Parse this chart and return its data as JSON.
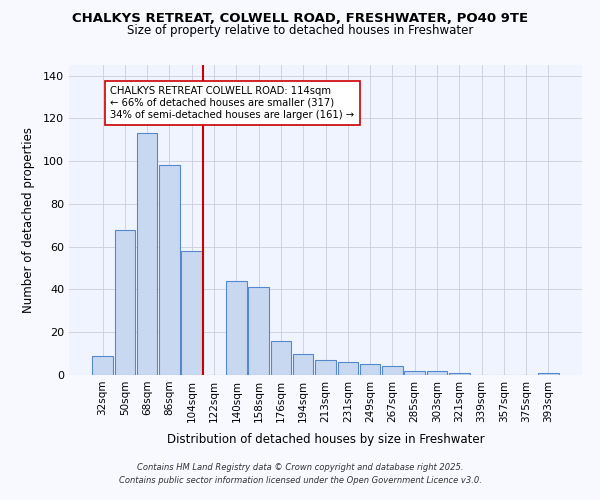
{
  "title_line1": "CHALKYS RETREAT, COLWELL ROAD, FRESHWATER, PO40 9TE",
  "title_line2": "Size of property relative to detached houses in Freshwater",
  "xlabel": "Distribution of detached houses by size in Freshwater",
  "ylabel": "Number of detached properties",
  "categories": [
    "32sqm",
    "50sqm",
    "68sqm",
    "86sqm",
    "104sqm",
    "122sqm",
    "140sqm",
    "158sqm",
    "176sqm",
    "194sqm",
    "213sqm",
    "231sqm",
    "249sqm",
    "267sqm",
    "285sqm",
    "303sqm",
    "321sqm",
    "339sqm",
    "357sqm",
    "375sqm",
    "393sqm"
  ],
  "values": [
    9,
    68,
    113,
    98,
    58,
    0,
    44,
    41,
    16,
    10,
    7,
    6,
    5,
    4,
    2,
    2,
    1,
    0,
    0,
    0,
    1
  ],
  "bar_color": "#c8d8f0",
  "bar_edge_color": "#5588cc",
  "vline_index": 5,
  "vline_color": "#cc0000",
  "annotation_text": "CHALKYS RETREAT COLWELL ROAD: 114sqm\n← 66% of detached houses are smaller (317)\n34% of semi-detached houses are larger (161) →",
  "annotation_box_edge": "#cc0000",
  "ylim": [
    0,
    145
  ],
  "yticks": [
    0,
    20,
    40,
    60,
    80,
    100,
    120,
    140
  ],
  "footer_line1": "Contains HM Land Registry data © Crown copyright and database right 2025.",
  "footer_line2": "Contains public sector information licensed under the Open Government Licence v3.0.",
  "fig_bg": "#f8f8ff",
  "plot_bg": "#f0f4ff",
  "grid_color": "#ccccdd"
}
